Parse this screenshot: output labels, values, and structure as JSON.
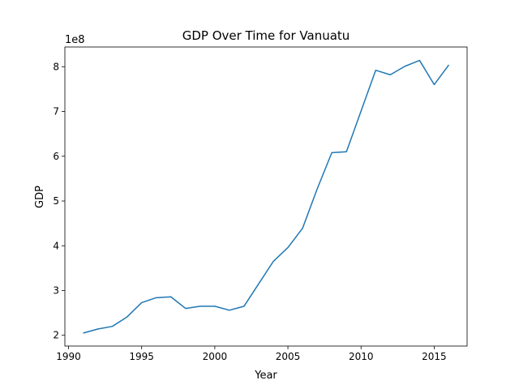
{
  "chart_data": {
    "type": "line",
    "title": "GDP Over Time for Vanuatu",
    "xlabel": "Year",
    "ylabel": "GDP",
    "y_offset_label": "1e8",
    "xlim": [
      1989.75,
      2017.25
    ],
    "ylim": [
      1.76,
      8.44
    ],
    "x_ticks": [
      1990,
      1995,
      2000,
      2005,
      2010,
      2015
    ],
    "x_tick_labels": [
      "1990",
      "1995",
      "2000",
      "2005",
      "2010",
      "2015"
    ],
    "y_ticks": [
      2,
      3,
      4,
      5,
      6,
      7,
      8
    ],
    "y_tick_labels": [
      "2",
      "3",
      "4",
      "5",
      "6",
      "7",
      "8"
    ],
    "grid": false,
    "series": [
      {
        "color": "#1f77b4",
        "x": [
          1991,
          1992,
          1993,
          1994,
          1995,
          1996,
          1997,
          1998,
          1999,
          2000,
          2001,
          2002,
          2003,
          2004,
          2005,
          2006,
          2007,
          2008,
          2009,
          2010,
          2011,
          2012,
          2013,
          2014,
          2015,
          2016
        ],
        "y": [
          2.05,
          2.14,
          2.2,
          2.41,
          2.73,
          2.84,
          2.86,
          2.6,
          2.65,
          2.65,
          2.56,
          2.65,
          3.15,
          3.65,
          3.96,
          4.39,
          5.27,
          6.08,
          6.1,
          7.01,
          7.92,
          7.82,
          8.01,
          8.14,
          7.6,
          8.04
        ]
      }
    ]
  }
}
